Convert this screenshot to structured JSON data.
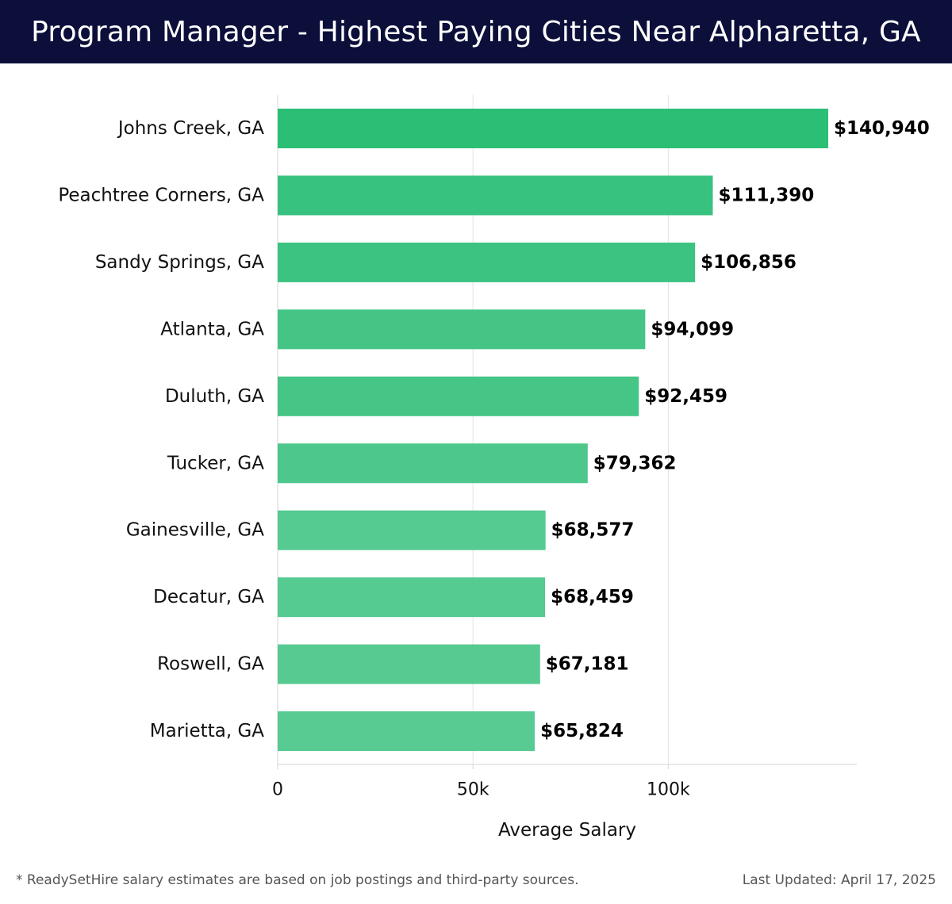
{
  "header": {
    "title": "Program Manager - Highest Paying Cities Near Alpharetta, GA"
  },
  "chart_data": {
    "type": "bar",
    "orientation": "horizontal",
    "title": "Program Manager - Highest Paying Cities Near Alpharetta, GA",
    "xlabel": "Average Salary",
    "ylabel": "",
    "xlim": [
      0,
      150000
    ],
    "grid": true,
    "xticks": [
      {
        "value": 0,
        "label": "0"
      },
      {
        "value": 50000,
        "label": "50k"
      },
      {
        "value": 100000,
        "label": "100k"
      }
    ],
    "categories": [
      "Johns Creek, GA",
      "Peachtree Corners, GA",
      "Sandy Springs, GA",
      "Atlanta, GA",
      "Duluth, GA",
      "Tucker, GA",
      "Gainesville, GA",
      "Decatur, GA",
      "Roswell, GA",
      "Marietta, GA"
    ],
    "values": [
      140940,
      111390,
      106856,
      94099,
      92459,
      79362,
      68577,
      68459,
      67181,
      65824
    ],
    "value_labels": [
      "$140,940",
      "$111,390",
      "$106,856",
      "$94,099",
      "$92,459",
      "$79,362",
      "$68,577",
      "$68,459",
      "$67,181",
      "$65,824"
    ],
    "colors": [
      "#2bbf76",
      "#38c27f",
      "#3cc381",
      "#44c585",
      "#45c586",
      "#4dc78b",
      "#55ca91",
      "#55ca91",
      "#57ca92",
      "#58cb93"
    ]
  },
  "footer": {
    "note": "* ReadySetHire salary estimates are based on job postings and third-party sources.",
    "updated": "Last Updated: April 17, 2025"
  }
}
